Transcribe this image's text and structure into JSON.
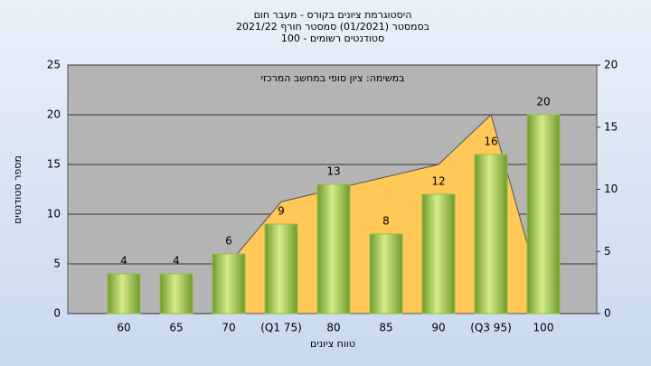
{
  "chart_data": {
    "type": "bar",
    "title": "היסטוגרמת ציונים בקורס - מעבר חום",
    "subtitle": [
      "בסמסטר  (01/2021)  סמסטר חורף 2021/22",
      "סטודנטים רשומים - 100"
    ],
    "annotation": "במשימה: ציון סופי במחשב המרכזי",
    "x_label": "טווח ציונים",
    "y_label": "מספר סטודנטים",
    "categories": [
      "60",
      "65",
      "70",
      "(Q1 75)",
      "80",
      "85",
      "90",
      "(Q3 95)",
      "100"
    ],
    "series": [
      {
        "color": "#94bd4c",
        "values": [
          4,
          4,
          6,
          9,
          13,
          8,
          12,
          16,
          20
        ]
      },
      {
        "color": "#ffc857",
        "axis": "y2",
        "values": [
          null,
          null,
          4,
          9,
          10,
          11,
          12,
          16,
          1
        ]
      }
    ],
    "ylim": [
      0,
      25
    ],
    "yticks": [
      0,
      5,
      10,
      15,
      20,
      25
    ],
    "y2lim": [
      0,
      20
    ],
    "y2ticks": [
      0,
      5,
      10,
      15,
      20
    ],
    "grid": true
  }
}
